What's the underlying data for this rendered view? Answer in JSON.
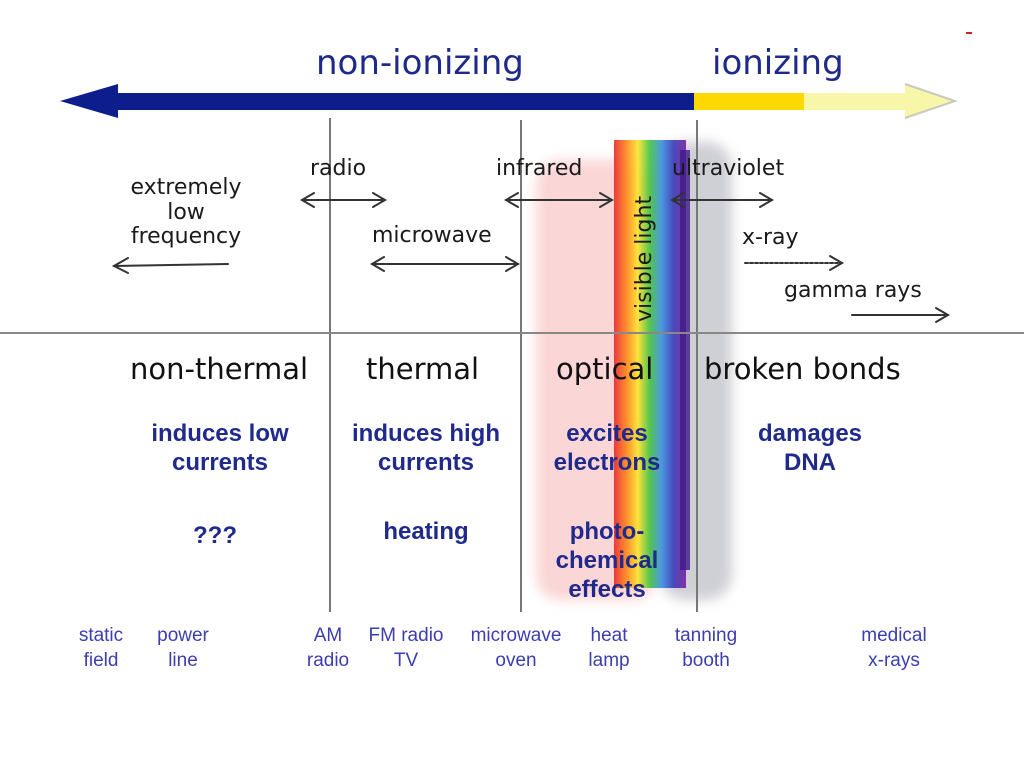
{
  "title": {
    "left": "non-ionizing",
    "right": "ionizing"
  },
  "bands": {
    "elf": [
      "extremely",
      "low",
      "frequency"
    ],
    "radio": "radio",
    "microwave": "microwave",
    "infrared": "infrared",
    "visible": "visible light",
    "ultraviolet": "ultraviolet",
    "xray": "x-ray",
    "gamma": "gamma rays"
  },
  "effects": {
    "non_thermal": {
      "heading": "non-thermal",
      "effect": [
        "induces low",
        "currents"
      ],
      "outcome": [
        "???"
      ]
    },
    "thermal": {
      "heading": "thermal",
      "effect": [
        "induces high",
        "currents"
      ],
      "outcome": [
        "heating"
      ]
    },
    "optical": {
      "heading": "optical",
      "effect": [
        "excites",
        "electrons"
      ],
      "outcome": [
        "photo-",
        "chemical",
        "effects"
      ]
    },
    "broken": {
      "heading": "broken bonds",
      "effect": [
        "damages",
        "DNA"
      ]
    }
  },
  "examples": [
    [
      "static",
      "field"
    ],
    [
      "power",
      "line"
    ],
    [
      "AM",
      "radio"
    ],
    [
      "FM radio",
      "TV"
    ],
    [
      "microwave",
      "oven"
    ],
    [
      "heat",
      "lamp"
    ],
    [
      "tanning",
      "booth"
    ],
    [
      "medical",
      "x-rays"
    ]
  ],
  "colors": {
    "non_ionizing_arrow": "#0d1d8c",
    "ionizing_arrow": "#f8f6a8",
    "ionizing_edge": "#ffd800",
    "optical_highlight": "#fad6d6",
    "uv_highlight": "#cfcfd6",
    "title_text": "#1e2a8a",
    "effect_text": "#1f2a8c",
    "example_text": "#3d3db0"
  }
}
